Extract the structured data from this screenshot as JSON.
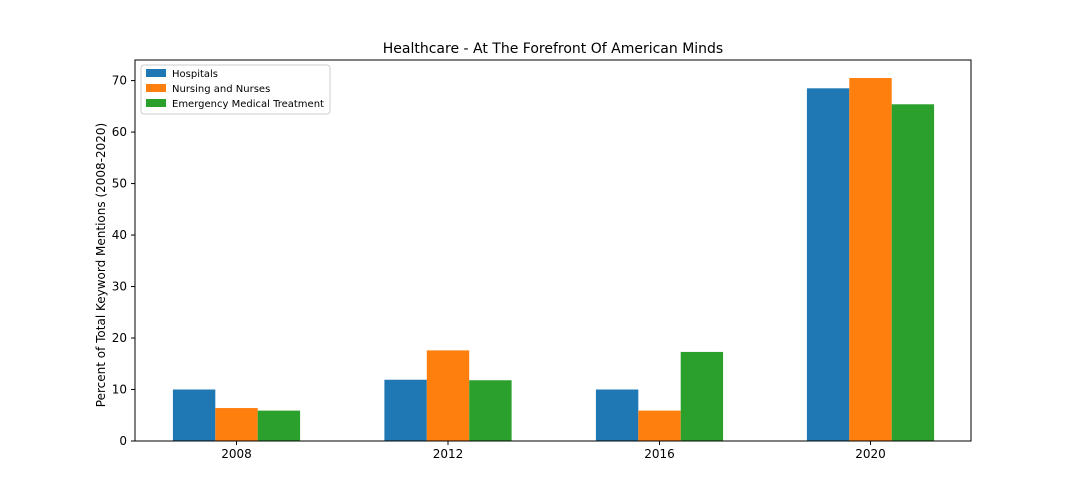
{
  "chart_data": {
    "type": "bar",
    "title": "Healthcare - At The Forefront Of American Minds",
    "xlabel": "",
    "ylabel": "Percent of Total Keyword Mentions (2008-2020)",
    "categories": [
      "2008",
      "2012",
      "2016",
      "2020"
    ],
    "series": [
      {
        "name": "Hospitals",
        "color": "#1f77b4",
        "values": [
          10.0,
          11.9,
          10.0,
          68.5
        ]
      },
      {
        "name": "Nursing and Nurses",
        "color": "#ff7f0e",
        "values": [
          6.4,
          17.6,
          5.9,
          70.5
        ]
      },
      {
        "name": "Emergency Medical Treatment",
        "color": "#2ca02c",
        "values": [
          5.9,
          11.8,
          17.3,
          65.4
        ]
      }
    ],
    "ylim": [
      0,
      74
    ],
    "yticks": [
      0,
      10,
      20,
      30,
      40,
      50,
      60,
      70
    ],
    "grid": false,
    "legend_position": "top-left"
  }
}
